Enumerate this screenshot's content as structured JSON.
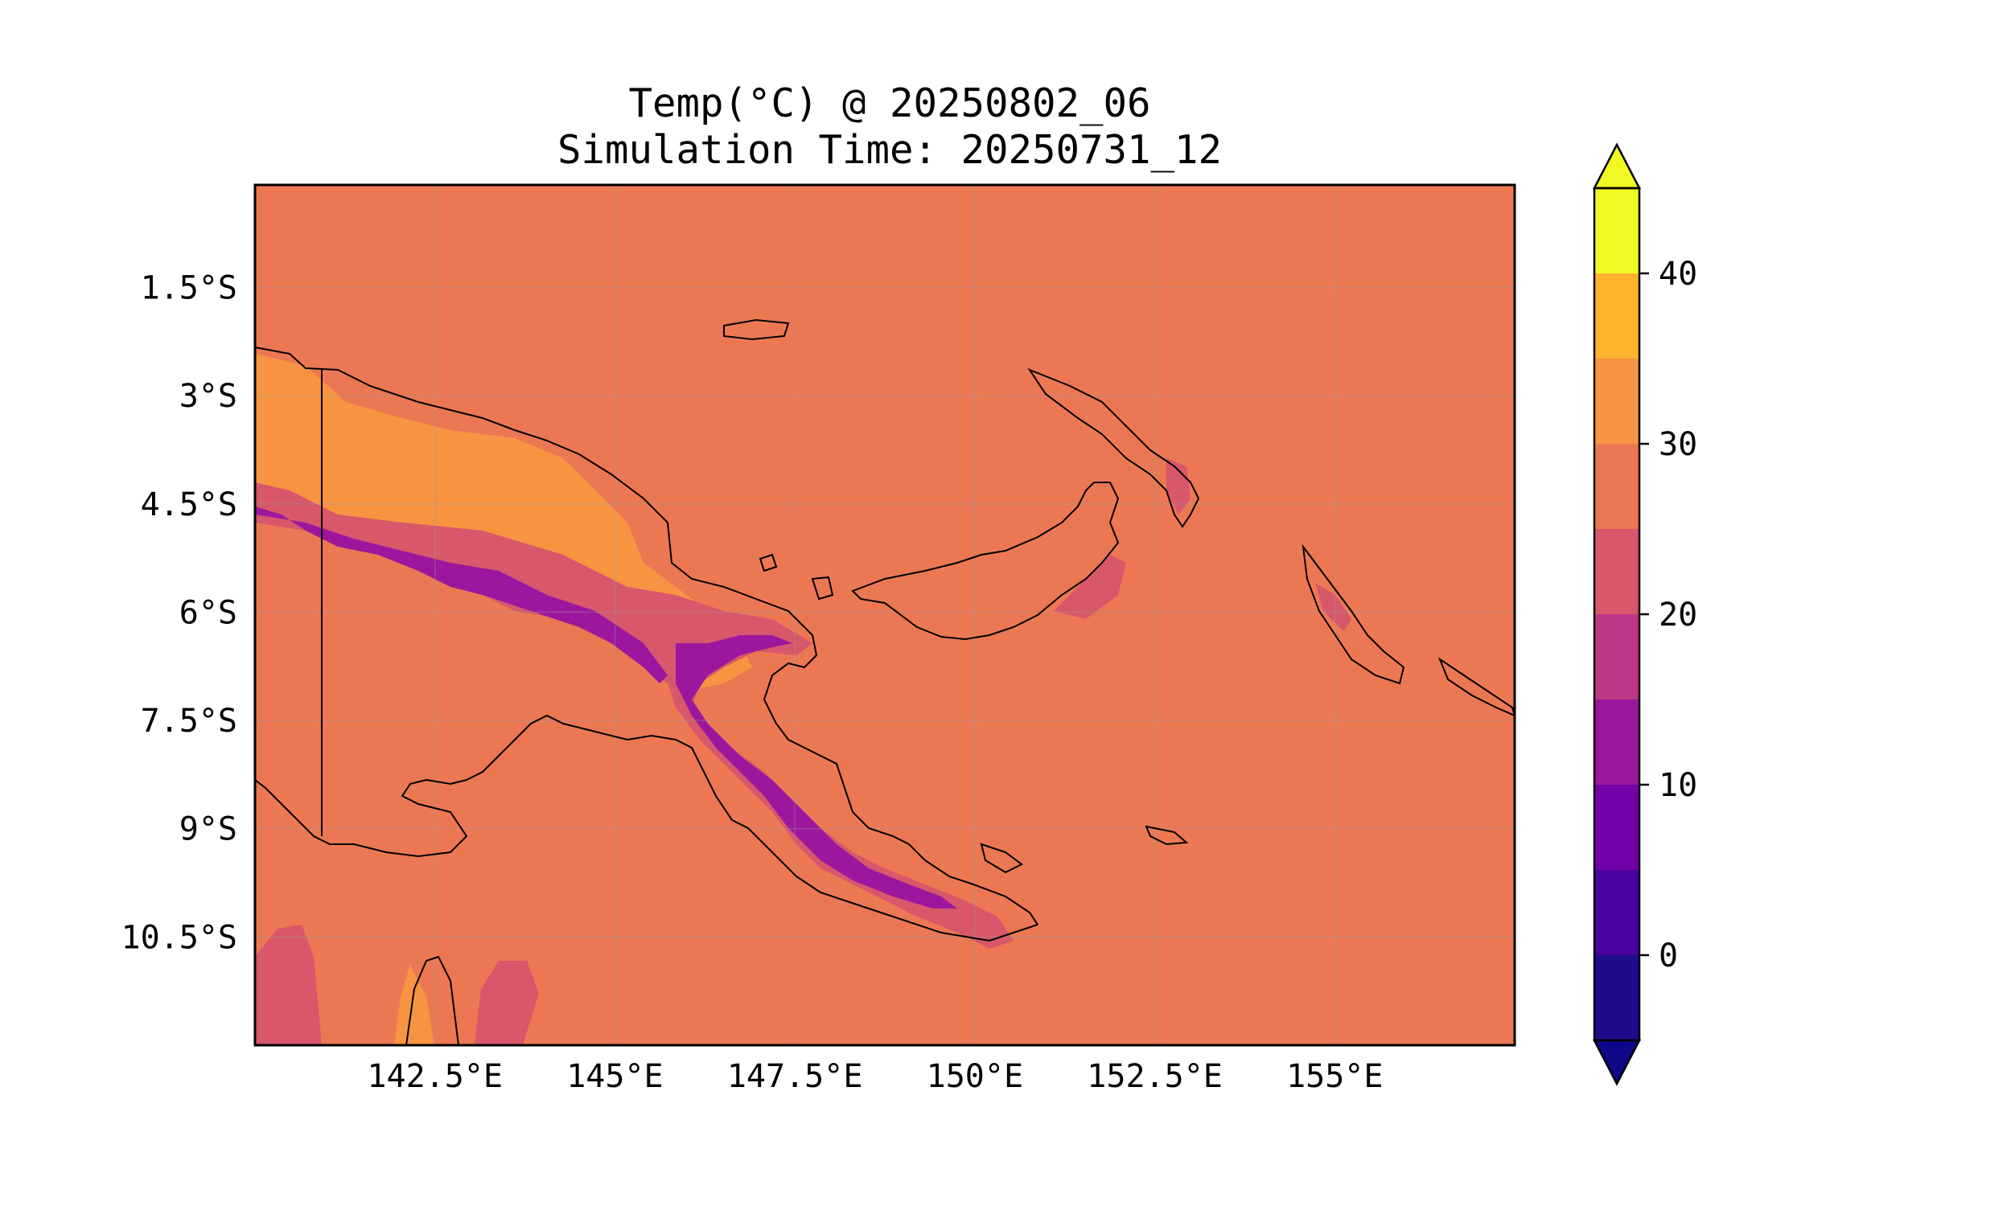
{
  "figure": {
    "title_line1": "Temp(°C) @ 20250802_06",
    "title_line2": "Simulation Time: 20250731_12"
  },
  "map": {
    "lon_range": [
      140.0,
      157.5
    ],
    "lat_range": [
      -12.0,
      -0.08
    ],
    "lon_ticks": [
      {
        "value": 142.5,
        "label": "142.5°E"
      },
      {
        "value": 145.0,
        "label": "145°E"
      },
      {
        "value": 147.5,
        "label": "147.5°E"
      },
      {
        "value": 150.0,
        "label": "150°E"
      },
      {
        "value": 152.5,
        "label": "152.5°E"
      },
      {
        "value": 155.0,
        "label": "155°E"
      }
    ],
    "lat_ticks": [
      {
        "value": -1.5,
        "label": "1.5°S"
      },
      {
        "value": -3.0,
        "label": "3°S"
      },
      {
        "value": -4.5,
        "label": "4.5°S"
      },
      {
        "value": -6.0,
        "label": "6°S"
      },
      {
        "value": -7.5,
        "label": "7.5°S"
      },
      {
        "value": -9.0,
        "label": "9°S"
      },
      {
        "value": -10.5,
        "label": "10.5°S"
      }
    ],
    "gridlines": true,
    "background_value_range": [
      25,
      30
    ]
  },
  "colorbar": {
    "levels": [
      -5,
      0,
      5,
      10,
      15,
      20,
      25,
      30,
      35,
      40,
      45
    ],
    "colors": [
      "#1f0c89",
      "#4a02a0",
      "#7301a8",
      "#9c179e",
      "#bd3786",
      "#d8576b",
      "#ec7853",
      "#f89441",
      "#fdb42f",
      "#f0f921"
    ],
    "under_color": "#0d0887",
    "over_color": "#f0f921",
    "extend": "both",
    "ticks": [
      {
        "value": 0,
        "label": "0"
      },
      {
        "value": 10,
        "label": "10"
      },
      {
        "value": 20,
        "label": "20"
      },
      {
        "value": 30,
        "label": "30"
      },
      {
        "value": 40,
        "label": "40"
      }
    ]
  }
}
